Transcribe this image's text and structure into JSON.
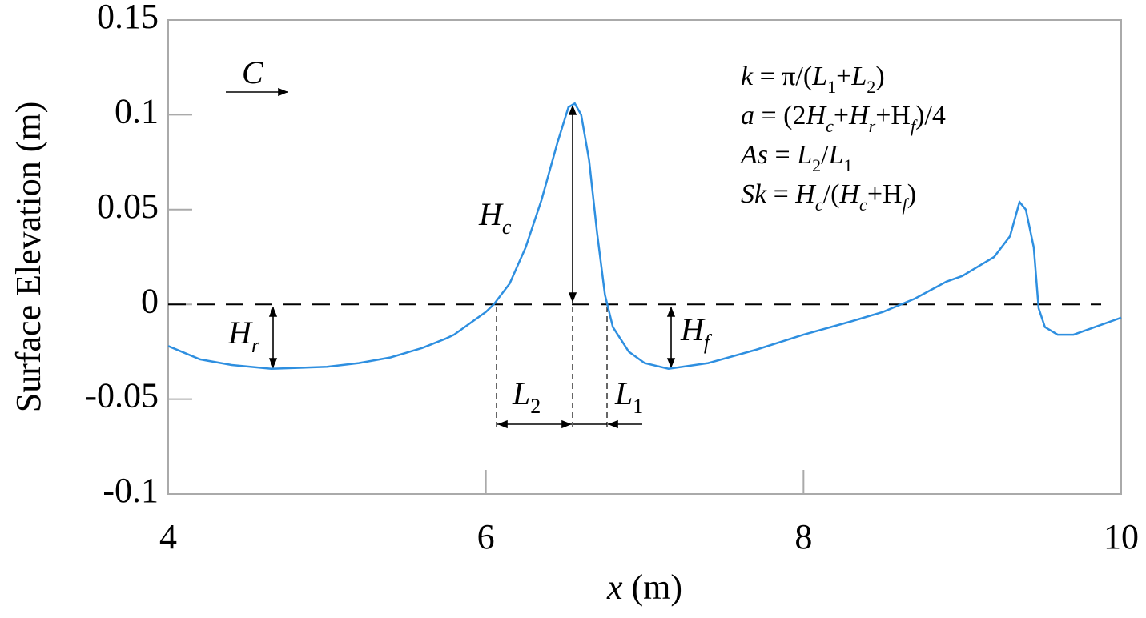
{
  "chart_data": {
    "type": "line",
    "xlabel": [
      {
        "t": "x",
        "s": "i"
      },
      {
        "t": " (m)",
        "s": ""
      }
    ],
    "ylabel": "Surface Elevation (m)",
    "x": [
      4,
      4.2,
      4.4,
      4.65,
      5.0,
      5.2,
      5.4,
      5.6,
      5.75,
      5.8,
      5.9,
      6.0,
      6.05,
      6.15,
      6.25,
      6.35,
      6.45,
      6.52,
      6.56,
      6.6,
      6.65,
      6.7,
      6.75,
      6.8,
      6.9,
      7.0,
      7.15,
      7.4,
      7.7,
      8.0,
      8.3,
      8.5,
      8.7,
      8.9,
      9.0,
      9.1,
      9.2,
      9.3,
      9.36,
      9.4,
      9.45,
      9.48,
      9.52,
      9.6,
      9.7,
      10.0
    ],
    "values": [
      -0.022,
      -0.029,
      -0.032,
      -0.034,
      -0.033,
      -0.031,
      -0.028,
      -0.023,
      -0.018,
      -0.016,
      -0.01,
      -0.004,
      0.0,
      0.011,
      0.03,
      0.055,
      0.085,
      0.104,
      0.106,
      0.1,
      0.076,
      0.038,
      0.005,
      -0.012,
      -0.025,
      -0.031,
      -0.034,
      -0.031,
      -0.024,
      -0.016,
      -0.009,
      -0.004,
      0.003,
      0.012,
      0.015,
      0.02,
      0.025,
      0.036,
      0.054,
      0.05,
      0.03,
      -0.002,
      -0.012,
      -0.016,
      -0.016,
      -0.007
    ],
    "color": "#2e8fe0",
    "xlim": [
      4,
      10
    ],
    "xticks": [
      4,
      6,
      8,
      10
    ],
    "ylim": [
      -0.1,
      0.15
    ],
    "yticks": [
      -0.1,
      -0.05,
      0,
      0.05,
      0.1,
      0.15
    ],
    "zero_line": true,
    "annotations": {
      "C": [
        {
          "t": "C",
          "s": "i"
        }
      ],
      "Hc": [
        {
          "t": "H",
          "s": "i"
        },
        {
          "t": "c",
          "s": "isub"
        }
      ],
      "Hr": [
        {
          "t": "H",
          "s": "i"
        },
        {
          "t": "r",
          "s": "isub"
        }
      ],
      "Hf": [
        {
          "t": "H",
          "s": "i"
        },
        {
          "t": "f",
          "s": "isub"
        }
      ],
      "L2": [
        {
          "t": "L",
          "s": "i"
        },
        {
          "t": "2",
          "s": "sub"
        }
      ],
      "L1": [
        {
          "t": "L",
          "s": "i"
        },
        {
          "t": "1",
          "s": "sub"
        }
      ],
      "formulas": [
        [
          {
            "t": "k",
            "s": "i"
          },
          {
            "t": " = π/(",
            "s": ""
          },
          {
            "t": "L",
            "s": "i"
          },
          {
            "t": "1",
            "s": "sub"
          },
          {
            "t": "+",
            "s": ""
          },
          {
            "t": "L",
            "s": "i"
          },
          {
            "t": "2",
            "s": "sub"
          },
          {
            "t": ")",
            "s": ""
          }
        ],
        [
          {
            "t": "a",
            "s": "i"
          },
          {
            "t": " = (2",
            "s": ""
          },
          {
            "t": "H",
            "s": "i"
          },
          {
            "t": "c",
            "s": "isub"
          },
          {
            "t": "+",
            "s": ""
          },
          {
            "t": "H",
            "s": "i"
          },
          {
            "t": "r",
            "s": "isub"
          },
          {
            "t": "+H",
            "s": ""
          },
          {
            "t": "f",
            "s": "isub"
          },
          {
            "t": ")/4",
            "s": ""
          }
        ],
        [
          {
            "t": "As",
            "s": "i"
          },
          {
            "t": " = ",
            "s": ""
          },
          {
            "t": "L",
            "s": "i"
          },
          {
            "t": "2",
            "s": "sub"
          },
          {
            "t": "/",
            "s": ""
          },
          {
            "t": "L",
            "s": "i"
          },
          {
            "t": "1",
            "s": "sub"
          }
        ],
        [
          {
            "t": "Sk",
            "s": "i"
          },
          {
            "t": " = ",
            "s": ""
          },
          {
            "t": "H",
            "s": "i"
          },
          {
            "t": "c",
            "s": "isub"
          },
          {
            "t": "/(",
            "s": ""
          },
          {
            "t": "H",
            "s": "i"
          },
          {
            "t": "c",
            "s": "isub"
          },
          {
            "t": "+H",
            "s": ""
          },
          {
            "t": "f",
            "s": "isub"
          },
          {
            "t": ")",
            "s": ""
          }
        ]
      ]
    }
  }
}
